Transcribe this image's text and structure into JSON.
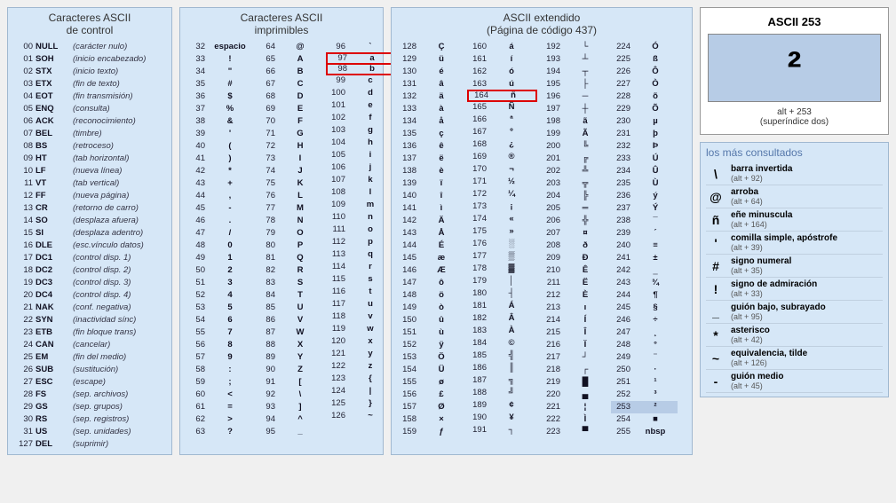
{
  "panels": {
    "control": {
      "title1": "Caracteres ASCII",
      "title2": "de control"
    },
    "printable": {
      "title1": "Caracteres ASCII",
      "title2": "imprimibles"
    },
    "extended": {
      "title1": "ASCII extendido",
      "title2": "(Página de código 437)"
    }
  },
  "control_rows": [
    {
      "c": "00",
      "s": "NULL",
      "d": "(carácter nulo)"
    },
    {
      "c": "01",
      "s": "SOH",
      "d": "(inicio encabezado)"
    },
    {
      "c": "02",
      "s": "STX",
      "d": "(inicio texto)"
    },
    {
      "c": "03",
      "s": "ETX",
      "d": "(fin de texto)"
    },
    {
      "c": "04",
      "s": "EOT",
      "d": "(fin transmisión)"
    },
    {
      "c": "05",
      "s": "ENQ",
      "d": "(consulta)"
    },
    {
      "c": "06",
      "s": "ACK",
      "d": "(reconocimiento)"
    },
    {
      "c": "07",
      "s": "BEL",
      "d": "(timbre)"
    },
    {
      "c": "08",
      "s": "BS",
      "d": "(retroceso)"
    },
    {
      "c": "09",
      "s": "HT",
      "d": "(tab horizontal)"
    },
    {
      "c": "10",
      "s": "LF",
      "d": "(nueva línea)"
    },
    {
      "c": "11",
      "s": "VT",
      "d": "(tab vertical)"
    },
    {
      "c": "12",
      "s": "FF",
      "d": "(nueva página)"
    },
    {
      "c": "13",
      "s": "CR",
      "d": "(retorno de carro)"
    },
    {
      "c": "14",
      "s": "SO",
      "d": "(desplaza afuera)"
    },
    {
      "c": "15",
      "s": "SI",
      "d": "(desplaza adentro)"
    },
    {
      "c": "16",
      "s": "DLE",
      "d": "(esc.vínculo datos)"
    },
    {
      "c": "17",
      "s": "DC1",
      "d": "(control disp. 1)"
    },
    {
      "c": "18",
      "s": "DC2",
      "d": "(control disp. 2)"
    },
    {
      "c": "19",
      "s": "DC3",
      "d": "(control disp. 3)"
    },
    {
      "c": "20",
      "s": "DC4",
      "d": "(control disp. 4)"
    },
    {
      "c": "21",
      "s": "NAK",
      "d": "(conf. negativa)"
    },
    {
      "c": "22",
      "s": "SYN",
      "d": "(inactividad sínc)"
    },
    {
      "c": "23",
      "s": "ETB",
      "d": "(fin bloque trans)"
    },
    {
      "c": "24",
      "s": "CAN",
      "d": "(cancelar)"
    },
    {
      "c": "25",
      "s": "EM",
      "d": "(fin del medio)"
    },
    {
      "c": "26",
      "s": "SUB",
      "d": "(sustitución)"
    },
    {
      "c": "27",
      "s": "ESC",
      "d": "(escape)"
    },
    {
      "c": "28",
      "s": "FS",
      "d": "(sep. archivos)"
    },
    {
      "c": "29",
      "s": "GS",
      "d": "(sep. grupos)"
    },
    {
      "c": "30",
      "s": "RS",
      "d": "(sep. registros)"
    },
    {
      "c": "31",
      "s": "US",
      "d": "(sep. unidades)"
    },
    {
      "c": "127",
      "s": "DEL",
      "d": "(suprimir)"
    }
  ],
  "printable_cols": [
    [
      {
        "c": "32",
        "s": "espacio"
      },
      {
        "c": "33",
        "s": "!"
      },
      {
        "c": "34",
        "s": "\""
      },
      {
        "c": "35",
        "s": "#"
      },
      {
        "c": "36",
        "s": "$"
      },
      {
        "c": "37",
        "s": "%"
      },
      {
        "c": "38",
        "s": "&"
      },
      {
        "c": "39",
        "s": "'"
      },
      {
        "c": "40",
        "s": "("
      },
      {
        "c": "41",
        "s": ")"
      },
      {
        "c": "42",
        "s": "*"
      },
      {
        "c": "43",
        "s": "+"
      },
      {
        "c": "44",
        "s": ","
      },
      {
        "c": "45",
        "s": "-"
      },
      {
        "c": "46",
        "s": "."
      },
      {
        "c": "47",
        "s": "/"
      },
      {
        "c": "48",
        "s": "0"
      },
      {
        "c": "49",
        "s": "1"
      },
      {
        "c": "50",
        "s": "2"
      },
      {
        "c": "51",
        "s": "3"
      },
      {
        "c": "52",
        "s": "4"
      },
      {
        "c": "53",
        "s": "5"
      },
      {
        "c": "54",
        "s": "6"
      },
      {
        "c": "55",
        "s": "7"
      },
      {
        "c": "56",
        "s": "8"
      },
      {
        "c": "57",
        "s": "9"
      },
      {
        "c": "58",
        "s": ":"
      },
      {
        "c": "59",
        "s": ";"
      },
      {
        "c": "60",
        "s": "<"
      },
      {
        "c": "61",
        "s": "="
      },
      {
        "c": "62",
        "s": ">"
      },
      {
        "c": "63",
        "s": "?"
      }
    ],
    [
      {
        "c": "64",
        "s": "@"
      },
      {
        "c": "65",
        "s": "A"
      },
      {
        "c": "66",
        "s": "B"
      },
      {
        "c": "67",
        "s": "C"
      },
      {
        "c": "68",
        "s": "D"
      },
      {
        "c": "69",
        "s": "E"
      },
      {
        "c": "70",
        "s": "F"
      },
      {
        "c": "71",
        "s": "G"
      },
      {
        "c": "72",
        "s": "H"
      },
      {
        "c": "73",
        "s": "I"
      },
      {
        "c": "74",
        "s": "J"
      },
      {
        "c": "75",
        "s": "K"
      },
      {
        "c": "76",
        "s": "L"
      },
      {
        "c": "77",
        "s": "M"
      },
      {
        "c": "78",
        "s": "N"
      },
      {
        "c": "79",
        "s": "O"
      },
      {
        "c": "80",
        "s": "P"
      },
      {
        "c": "81",
        "s": "Q"
      },
      {
        "c": "82",
        "s": "R"
      },
      {
        "c": "83",
        "s": "S"
      },
      {
        "c": "84",
        "s": "T"
      },
      {
        "c": "85",
        "s": "U"
      },
      {
        "c": "86",
        "s": "V"
      },
      {
        "c": "87",
        "s": "W"
      },
      {
        "c": "88",
        "s": "X"
      },
      {
        "c": "89",
        "s": "Y"
      },
      {
        "c": "90",
        "s": "Z"
      },
      {
        "c": "91",
        "s": "["
      },
      {
        "c": "92",
        "s": "\\"
      },
      {
        "c": "93",
        "s": "]"
      },
      {
        "c": "94",
        "s": "^"
      },
      {
        "c": "95",
        "s": "_"
      }
    ],
    [
      {
        "c": "96",
        "s": "`"
      },
      {
        "c": "97",
        "s": "a",
        "hl": true
      },
      {
        "c": "98",
        "s": "b",
        "hl": true
      },
      {
        "c": "99",
        "s": "c"
      },
      {
        "c": "100",
        "s": "d"
      },
      {
        "c": "101",
        "s": "e"
      },
      {
        "c": "102",
        "s": "f"
      },
      {
        "c": "103",
        "s": "g"
      },
      {
        "c": "104",
        "s": "h"
      },
      {
        "c": "105",
        "s": "i"
      },
      {
        "c": "106",
        "s": "j"
      },
      {
        "c": "107",
        "s": "k"
      },
      {
        "c": "108",
        "s": "l"
      },
      {
        "c": "109",
        "s": "m"
      },
      {
        "c": "110",
        "s": "n"
      },
      {
        "c": "111",
        "s": "o"
      },
      {
        "c": "112",
        "s": "p"
      },
      {
        "c": "113",
        "s": "q"
      },
      {
        "c": "114",
        "s": "r"
      },
      {
        "c": "115",
        "s": "s"
      },
      {
        "c": "116",
        "s": "t"
      },
      {
        "c": "117",
        "s": "u"
      },
      {
        "c": "118",
        "s": "v"
      },
      {
        "c": "119",
        "s": "w"
      },
      {
        "c": "120",
        "s": "x"
      },
      {
        "c": "121",
        "s": "y"
      },
      {
        "c": "122",
        "s": "z"
      },
      {
        "c": "123",
        "s": "{"
      },
      {
        "c": "124",
        "s": "|"
      },
      {
        "c": "125",
        "s": "}"
      },
      {
        "c": "126",
        "s": "~"
      }
    ]
  ],
  "extended_cols": [
    [
      {
        "c": "128",
        "s": "Ç"
      },
      {
        "c": "129",
        "s": "ü"
      },
      {
        "c": "130",
        "s": "é"
      },
      {
        "c": "131",
        "s": "â"
      },
      {
        "c": "132",
        "s": "ä"
      },
      {
        "c": "133",
        "s": "à"
      },
      {
        "c": "134",
        "s": "å"
      },
      {
        "c": "135",
        "s": "ç"
      },
      {
        "c": "136",
        "s": "ê"
      },
      {
        "c": "137",
        "s": "ë"
      },
      {
        "c": "138",
        "s": "è"
      },
      {
        "c": "139",
        "s": "ï"
      },
      {
        "c": "140",
        "s": "î"
      },
      {
        "c": "141",
        "s": "ì"
      },
      {
        "c": "142",
        "s": "Ä"
      },
      {
        "c": "143",
        "s": "Å"
      },
      {
        "c": "144",
        "s": "É"
      },
      {
        "c": "145",
        "s": "æ"
      },
      {
        "c": "146",
        "s": "Æ"
      },
      {
        "c": "147",
        "s": "ô"
      },
      {
        "c": "148",
        "s": "ö"
      },
      {
        "c": "149",
        "s": "ò"
      },
      {
        "c": "150",
        "s": "û"
      },
      {
        "c": "151",
        "s": "ù"
      },
      {
        "c": "152",
        "s": "ÿ"
      },
      {
        "c": "153",
        "s": "Ö"
      },
      {
        "c": "154",
        "s": "Ü"
      },
      {
        "c": "155",
        "s": "ø"
      },
      {
        "c": "156",
        "s": "£"
      },
      {
        "c": "157",
        "s": "Ø"
      },
      {
        "c": "158",
        "s": "×"
      },
      {
        "c": "159",
        "s": "ƒ"
      }
    ],
    [
      {
        "c": "160",
        "s": "á"
      },
      {
        "c": "161",
        "s": "í"
      },
      {
        "c": "162",
        "s": "ó"
      },
      {
        "c": "163",
        "s": "ú"
      },
      {
        "c": "164",
        "s": "ñ",
        "hl": true
      },
      {
        "c": "165",
        "s": "Ñ"
      },
      {
        "c": "166",
        "s": "ª"
      },
      {
        "c": "167",
        "s": "º"
      },
      {
        "c": "168",
        "s": "¿"
      },
      {
        "c": "169",
        "s": "®"
      },
      {
        "c": "170",
        "s": "¬"
      },
      {
        "c": "171",
        "s": "½"
      },
      {
        "c": "172",
        "s": "¼"
      },
      {
        "c": "173",
        "s": "¡"
      },
      {
        "c": "174",
        "s": "«"
      },
      {
        "c": "175",
        "s": "»"
      },
      {
        "c": "176",
        "s": "░"
      },
      {
        "c": "177",
        "s": "▒"
      },
      {
        "c": "178",
        "s": "▓"
      },
      {
        "c": "179",
        "s": "│"
      },
      {
        "c": "180",
        "s": "┤"
      },
      {
        "c": "181",
        "s": "Á"
      },
      {
        "c": "182",
        "s": "Â"
      },
      {
        "c": "183",
        "s": "À"
      },
      {
        "c": "184",
        "s": "©"
      },
      {
        "c": "185",
        "s": "╣"
      },
      {
        "c": "186",
        "s": "║"
      },
      {
        "c": "187",
        "s": "╗"
      },
      {
        "c": "188",
        "s": "╝"
      },
      {
        "c": "189",
        "s": "¢"
      },
      {
        "c": "190",
        "s": "¥"
      },
      {
        "c": "191",
        "s": "┐"
      }
    ],
    [
      {
        "c": "192",
        "s": "└"
      },
      {
        "c": "193",
        "s": "┴"
      },
      {
        "c": "194",
        "s": "┬"
      },
      {
        "c": "195",
        "s": "├"
      },
      {
        "c": "196",
        "s": "─"
      },
      {
        "c": "197",
        "s": "┼"
      },
      {
        "c": "198",
        "s": "ã"
      },
      {
        "c": "199",
        "s": "Ã"
      },
      {
        "c": "200",
        "s": "╚"
      },
      {
        "c": "201",
        "s": "╔"
      },
      {
        "c": "202",
        "s": "╩"
      },
      {
        "c": "203",
        "s": "╦"
      },
      {
        "c": "204",
        "s": "╠"
      },
      {
        "c": "205",
        "s": "═"
      },
      {
        "c": "206",
        "s": "╬"
      },
      {
        "c": "207",
        "s": "¤"
      },
      {
        "c": "208",
        "s": "ð"
      },
      {
        "c": "209",
        "s": "Ð"
      },
      {
        "c": "210",
        "s": "Ê"
      },
      {
        "c": "211",
        "s": "Ë"
      },
      {
        "c": "212",
        "s": "È"
      },
      {
        "c": "213",
        "s": "ı"
      },
      {
        "c": "214",
        "s": "Í"
      },
      {
        "c": "215",
        "s": "Î"
      },
      {
        "c": "216",
        "s": "Ï"
      },
      {
        "c": "217",
        "s": "┘"
      },
      {
        "c": "218",
        "s": "┌"
      },
      {
        "c": "219",
        "s": "█"
      },
      {
        "c": "220",
        "s": "▄"
      },
      {
        "c": "221",
        "s": "¦"
      },
      {
        "c": "222",
        "s": "Ì"
      },
      {
        "c": "223",
        "s": "▀"
      }
    ],
    [
      {
        "c": "224",
        "s": "Ó"
      },
      {
        "c": "225",
        "s": "ß"
      },
      {
        "c": "226",
        "s": "Ô"
      },
      {
        "c": "227",
        "s": "Ò"
      },
      {
        "c": "228",
        "s": "õ"
      },
      {
        "c": "229",
        "s": "Õ"
      },
      {
        "c": "230",
        "s": "µ"
      },
      {
        "c": "231",
        "s": "þ"
      },
      {
        "c": "232",
        "s": "Þ"
      },
      {
        "c": "233",
        "s": "Ú"
      },
      {
        "c": "234",
        "s": "Û"
      },
      {
        "c": "235",
        "s": "Ù"
      },
      {
        "c": "236",
        "s": "ý"
      },
      {
        "c": "237",
        "s": "Ý"
      },
      {
        "c": "238",
        "s": "¯"
      },
      {
        "c": "239",
        "s": "´"
      },
      {
        "c": "240",
        "s": "≡"
      },
      {
        "c": "241",
        "s": "±"
      },
      {
        "c": "242",
        "s": "‗"
      },
      {
        "c": "243",
        "s": "¾"
      },
      {
        "c": "244",
        "s": "¶"
      },
      {
        "c": "245",
        "s": "§"
      },
      {
        "c": "246",
        "s": "÷"
      },
      {
        "c": "247",
        "s": "¸"
      },
      {
        "c": "248",
        "s": "°"
      },
      {
        "c": "249",
        "s": "¨"
      },
      {
        "c": "250",
        "s": "·"
      },
      {
        "c": "251",
        "s": "¹"
      },
      {
        "c": "252",
        "s": "³"
      },
      {
        "c": "253",
        "s": "²",
        "sel": true
      },
      {
        "c": "254",
        "s": "■"
      },
      {
        "c": "255",
        "s": "nbsp"
      }
    ]
  ],
  "showcase": {
    "title": "ASCII 253",
    "big": "²",
    "alt": "alt + 253",
    "desc": "(superíndice dos)"
  },
  "consult": {
    "title": "los más consultados",
    "items": [
      {
        "sym": "\\",
        "label": "barra invertida",
        "sub": "(alt + 92)"
      },
      {
        "sym": "@",
        "label": "arroba",
        "sub": "(alt + 64)"
      },
      {
        "sym": "ñ",
        "label": "eñe minuscula",
        "sub": "(alt + 164)"
      },
      {
        "sym": "'",
        "label": "comilla simple, apóstrofe",
        "sub": "(alt + 39)"
      },
      {
        "sym": "#",
        "label": "signo numeral",
        "sub": "(alt + 35)"
      },
      {
        "sym": "!",
        "label": "signo de admiración",
        "sub": "(alt + 33)"
      },
      {
        "sym": "_",
        "label": "guión bajo, subrayado",
        "sub": "(alt + 95)"
      },
      {
        "sym": "*",
        "label": "asterisco",
        "sub": "(alt + 42)"
      },
      {
        "sym": "~",
        "label": "equivalencia, tilde",
        "sub": "(alt + 126)"
      },
      {
        "sym": "-",
        "label": "guión medio",
        "sub": "(alt + 45)"
      }
    ]
  }
}
